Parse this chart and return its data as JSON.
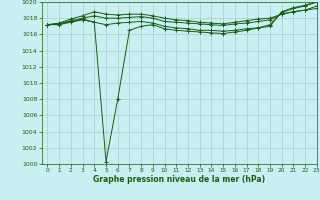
{
  "title": "Graphe pression niveau de la mer (hPa)",
  "bg_color": "#c8f0f0",
  "grid_color": "#b0cccc",
  "line_color": "#1a5c1a",
  "xlim": [
    -0.5,
    23
  ],
  "ylim": [
    1000,
    1020
  ],
  "yticks": [
    1000,
    1002,
    1004,
    1006,
    1008,
    1010,
    1012,
    1014,
    1016,
    1018,
    1020
  ],
  "xticks": [
    0,
    1,
    2,
    3,
    4,
    5,
    6,
    7,
    8,
    9,
    10,
    11,
    12,
    13,
    14,
    15,
    16,
    17,
    18,
    19,
    20,
    21,
    22,
    23
  ],
  "series": [
    [
      1017.2,
      1017.2,
      1017.5,
      1017.8,
      1017.5,
      1017.2,
      1017.4,
      1017.5,
      1017.6,
      1017.4,
      1017.0,
      1016.8,
      1016.7,
      1016.5,
      1016.5,
      1016.4,
      1016.5,
      1016.7,
      1016.8,
      1017.2,
      1018.7,
      1019.2,
      1019.5,
      1020.0
    ],
    [
      1017.2,
      1017.3,
      1017.7,
      1018.0,
      1018.3,
      1018.0,
      1018.0,
      1018.1,
      1018.2,
      1018.0,
      1017.6,
      1017.5,
      1017.4,
      1017.3,
      1017.2,
      1017.1,
      1017.3,
      1017.4,
      1017.6,
      1017.8,
      1018.5,
      1018.8,
      1019.0,
      1019.2
    ],
    [
      1017.2,
      1017.4,
      1017.9,
      1018.3,
      1018.8,
      1018.5,
      1018.4,
      1018.5,
      1018.5,
      1018.3,
      1018.0,
      1017.8,
      1017.7,
      1017.5,
      1017.4,
      1017.3,
      1017.5,
      1017.7,
      1017.9,
      1018.0,
      1018.5,
      1018.8,
      1019.0,
      1019.5
    ],
    [
      1017.2,
      1017.3,
      1017.6,
      1017.9,
      1017.5,
      1000.3,
      1008.0,
      1016.5,
      1017.0,
      1017.2,
      1016.7,
      1016.5,
      1016.4,
      1016.3,
      1016.2,
      1016.1,
      1016.3,
      1016.5,
      1016.8,
      1017.0,
      1018.8,
      1019.3,
      1019.6,
      1020.1
    ]
  ]
}
